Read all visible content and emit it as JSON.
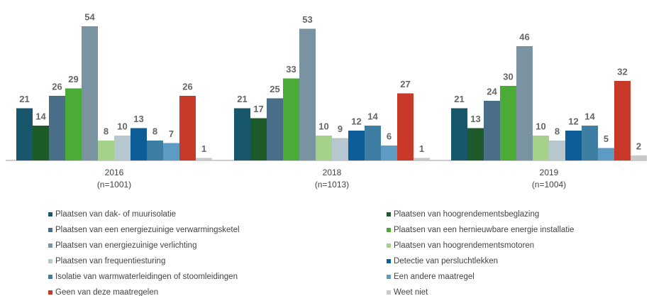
{
  "chart_data": {
    "type": "bar",
    "categories": [
      "2016\n(n=1001)",
      "2018\n(n=1013)",
      "2019\n(n=1004)"
    ],
    "series": [
      {
        "name": "Plaatsen van dak- of muurisolatie",
        "color": "#17566b",
        "values": [
          21,
          21,
          21
        ]
      },
      {
        "name": "Plaatsen van hoogrendementsbeglazing",
        "color": "#1d5a29",
        "values": [
          14,
          17,
          13
        ]
      },
      {
        "name": "Plaatsen van een energiezuinige verwarmingsketel",
        "color": "#4a6e88",
        "values": [
          26,
          25,
          24
        ]
      },
      {
        "name": "Plaatsen van een hernieuwbare energie installatie",
        "color": "#4aab37",
        "values": [
          29,
          33,
          30
        ]
      },
      {
        "name": "Plaatsen van energiezuinige verlichting",
        "color": "#7993a3",
        "values": [
          54,
          53,
          46
        ]
      },
      {
        "name": "Plaatsen van hoogrendementsmotoren",
        "color": "#a5d18b",
        "values": [
          8,
          10,
          10
        ]
      },
      {
        "name": "Plaatsen van frequentiesturing",
        "color": "#b7c7cf",
        "values": [
          10,
          9,
          8
        ]
      },
      {
        "name": "Detectie van persluchtlekken",
        "color": "#0d5e98",
        "values": [
          13,
          12,
          12
        ]
      },
      {
        "name": "Isolatie van warmwaterleidingen of stoomleidingen",
        "color": "#3e7ea2",
        "values": [
          8,
          14,
          14
        ]
      },
      {
        "name": "Een andere maatregel",
        "color": "#5e9bc4",
        "values": [
          7,
          6,
          5
        ]
      },
      {
        "name": "Geen van deze maatregelen",
        "color": "#c8392a",
        "values": [
          26,
          27,
          32
        ]
      },
      {
        "name": "Weet niet",
        "color": "#c9c9c9",
        "values": [
          1,
          1,
          2
        ]
      }
    ]
  }
}
